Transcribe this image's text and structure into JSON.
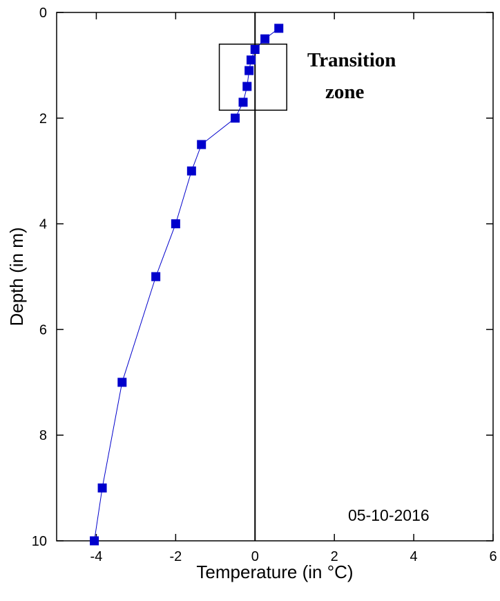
{
  "chart_data": {
    "type": "line",
    "x_axis": {
      "label": "Temperature (in °C)",
      "range": [
        -5,
        6
      ],
      "ticks": [
        -4,
        -2,
        0,
        2,
        4,
        6
      ],
      "tick_labels": [
        "-4",
        "-2",
        "0",
        "2",
        "4",
        "6"
      ]
    },
    "y_axis": {
      "label": "Depth (in m)",
      "range": [
        0,
        10
      ],
      "inverted": true,
      "ticks": [
        0,
        2,
        4,
        6,
        8,
        10
      ],
      "tick_labels": [
        "0",
        "2",
        "4",
        "6",
        "8",
        "10"
      ]
    },
    "series": [
      {
        "marker": "square",
        "color": "#0000cc",
        "points": [
          {
            "x": 0.6,
            "y": 0.3
          },
          {
            "x": 0.25,
            "y": 0.5
          },
          {
            "x": 0.0,
            "y": 0.7
          },
          {
            "x": -0.1,
            "y": 0.9
          },
          {
            "x": -0.15,
            "y": 1.1
          },
          {
            "x": -0.2,
            "y": 1.4
          },
          {
            "x": -0.3,
            "y": 1.7
          },
          {
            "x": -0.5,
            "y": 2.0
          },
          {
            "x": -1.35,
            "y": 2.5
          },
          {
            "x": -1.6,
            "y": 3.0
          },
          {
            "x": -2.0,
            "y": 4.0
          },
          {
            "x": -2.5,
            "y": 5.0
          },
          {
            "x": -3.35,
            "y": 7.0
          },
          {
            "x": -3.85,
            "y": 9.0
          },
          {
            "x": -4.05,
            "y": 10.0
          }
        ]
      }
    ],
    "reference_line": {
      "x": 0
    },
    "annotations": {
      "region_label_line1": "Transition",
      "region_label_line2": "zone",
      "region": {
        "x": [
          -0.9,
          0.8
        ],
        "y": [
          0.6,
          1.85
        ]
      },
      "date": "05-10-2016"
    },
    "grid": false,
    "legend": "none"
  }
}
